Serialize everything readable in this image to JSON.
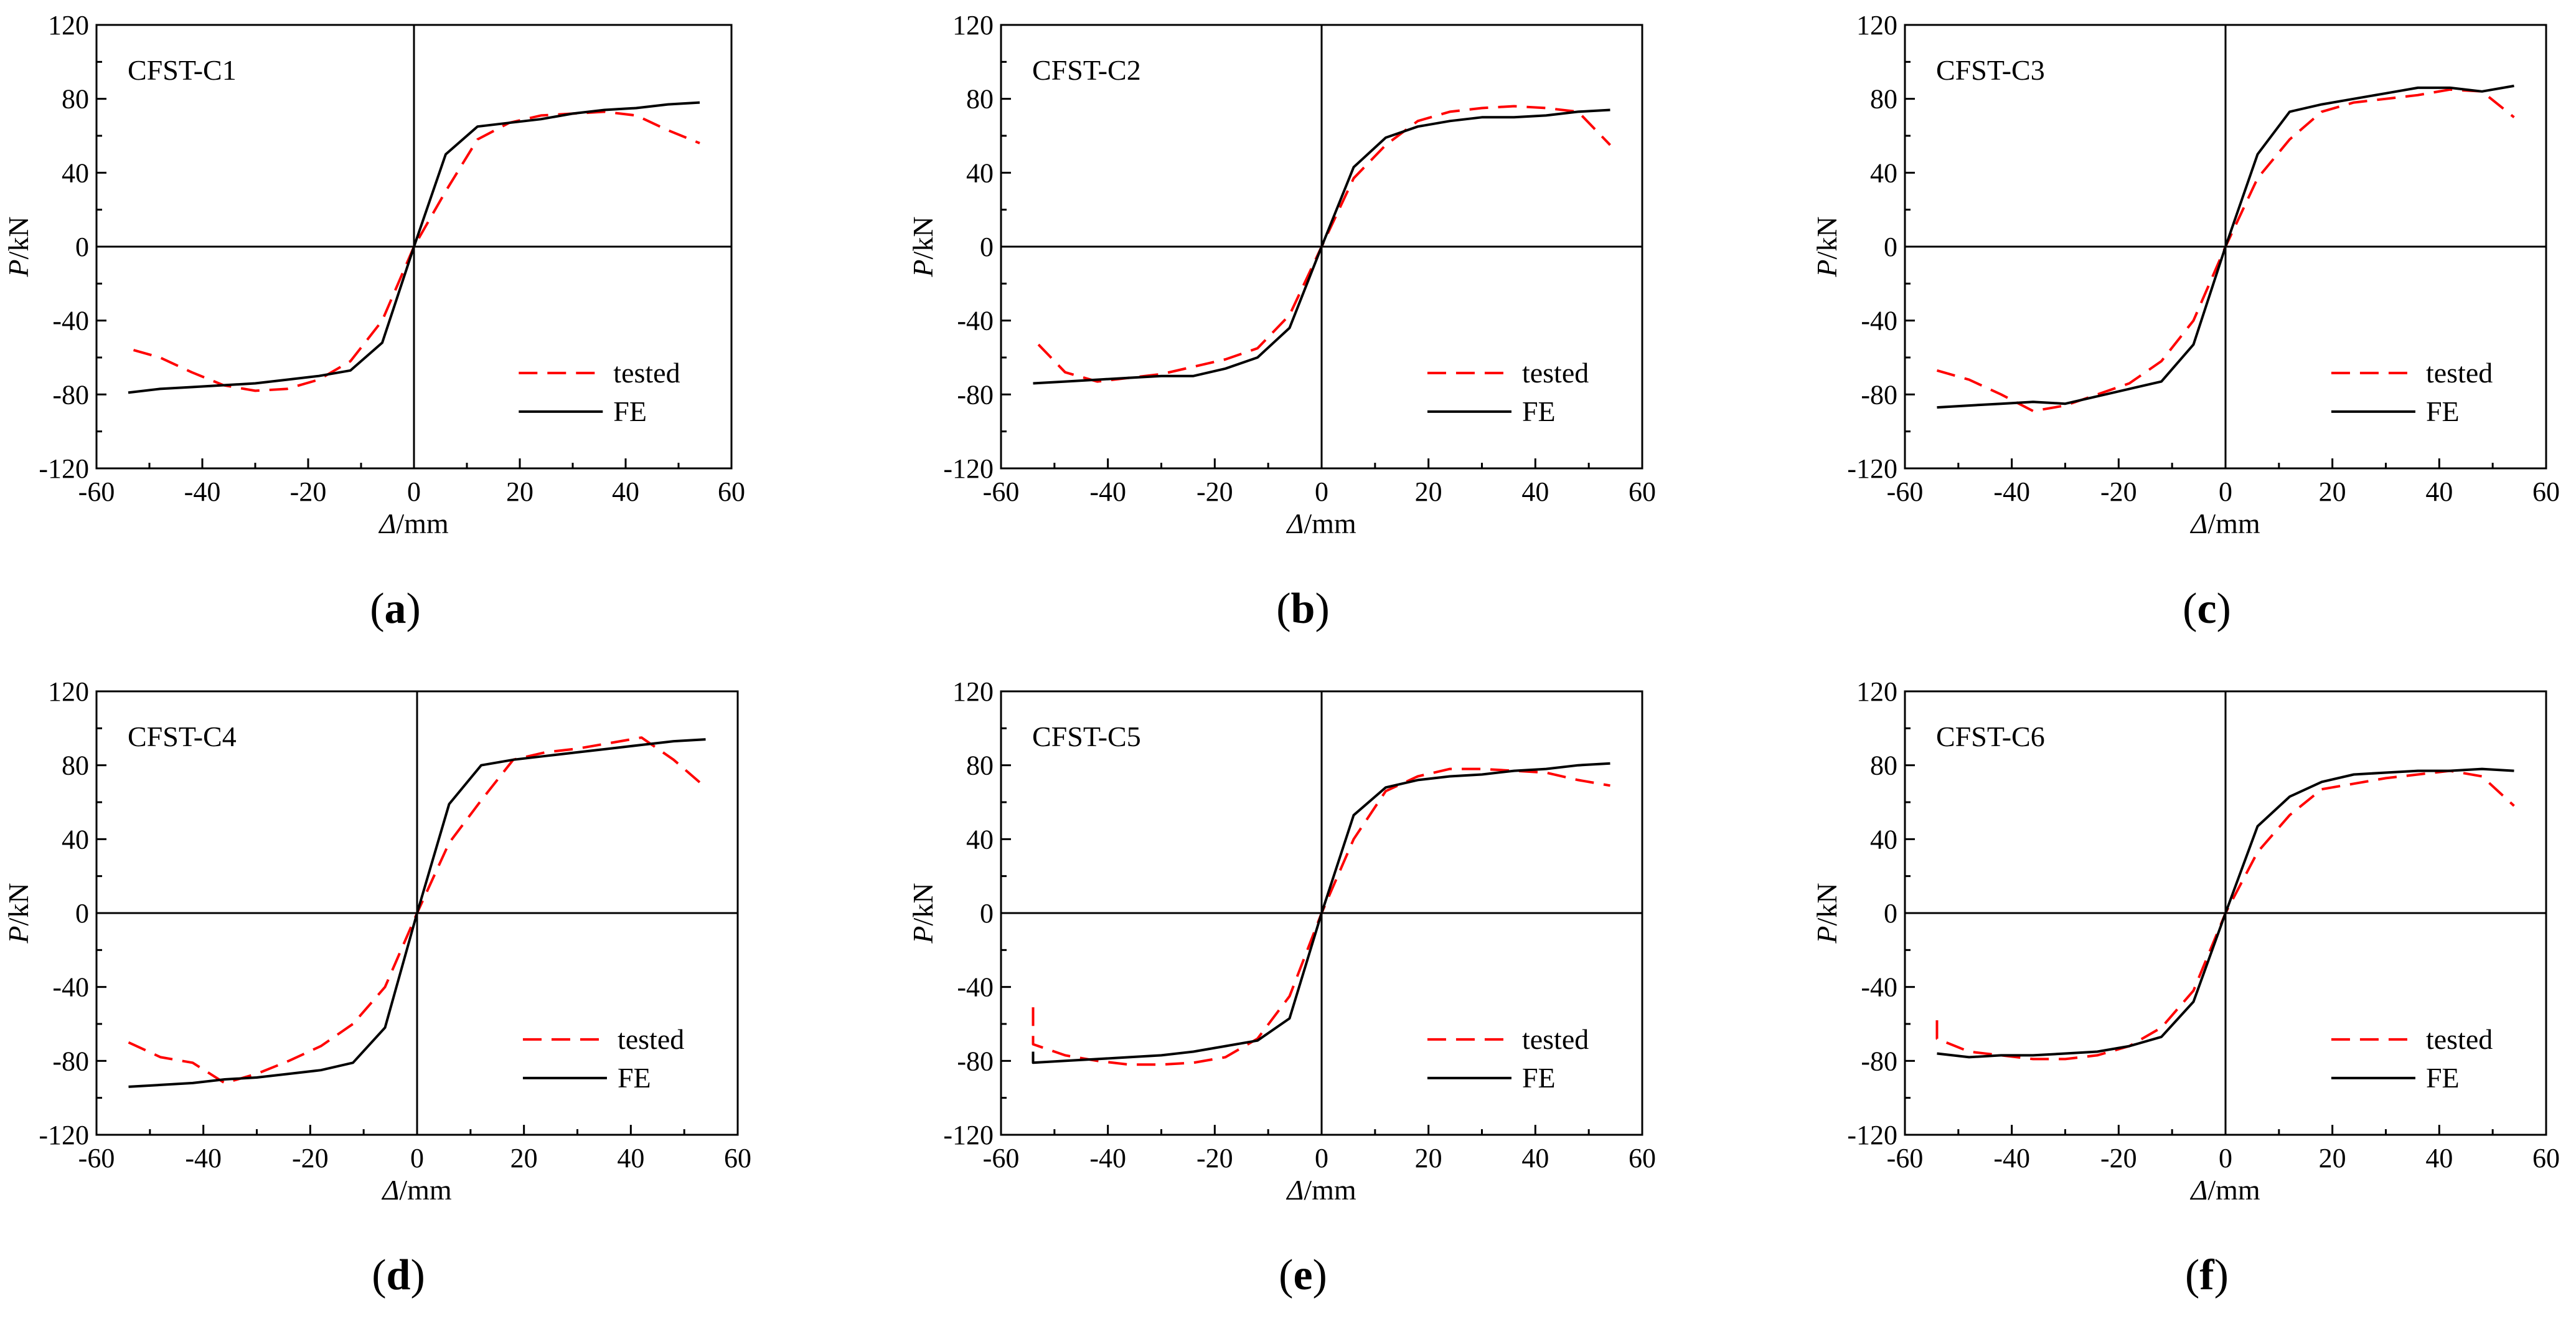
{
  "figure": {
    "background": "#ffffff",
    "tested_color": "#ff0000",
    "fe_color": "#000000"
  },
  "chart_data": [
    {
      "type": "line",
      "title": "CFST-C1",
      "caption_letter": "a",
      "caption_open": "(",
      "caption_close": ")",
      "xlabel_sym": "Δ",
      "xlabel_unit": "/mm",
      "ylabel_sym": "P",
      "ylabel_unit": "/kN",
      "xlim": [
        -60,
        60
      ],
      "ylim": [
        -120,
        120
      ],
      "xticks": [
        -60,
        -40,
        -20,
        0,
        20,
        40,
        60
      ],
      "yticks": [
        -120,
        -80,
        -40,
        0,
        40,
        80,
        120
      ],
      "legend": {
        "position": "lower-right",
        "entries": [
          "tested",
          "FE"
        ]
      },
      "series": [
        {
          "name": "tested",
          "style": "dashed",
          "color": "#ff0000",
          "x": [
            -53,
            -48,
            -42,
            -36,
            -30,
            -24,
            -18,
            -12,
            -6,
            0,
            6,
            12,
            18,
            24,
            30,
            36,
            42,
            48,
            54
          ],
          "y": [
            -56,
            -60,
            -68,
            -75,
            -78,
            -77,
            -72,
            -62,
            -40,
            0,
            30,
            58,
            67,
            71,
            72,
            73,
            71,
            63,
            56
          ]
        },
        {
          "name": "FE",
          "style": "solid",
          "color": "#000000",
          "x": [
            -54,
            -48,
            -42,
            -36,
            -30,
            -24,
            -18,
            -12,
            -6,
            0,
            6,
            12,
            18,
            24,
            30,
            36,
            42,
            48,
            54
          ],
          "y": [
            -79,
            -77,
            -76,
            -75,
            -74,
            -72,
            -70,
            -67,
            -52,
            0,
            50,
            65,
            67,
            69,
            72,
            74,
            75,
            77,
            78
          ]
        }
      ]
    },
    {
      "type": "line",
      "title": "CFST-C2",
      "caption_letter": "b",
      "caption_open": "(",
      "caption_close": ")",
      "xlabel_sym": "Δ",
      "xlabel_unit": "/mm",
      "ylabel_sym": "P",
      "ylabel_unit": "/kN",
      "xlim": [
        -60,
        60
      ],
      "ylim": [
        -120,
        120
      ],
      "xticks": [
        -60,
        -40,
        -20,
        0,
        20,
        40,
        60
      ],
      "yticks": [
        -120,
        -80,
        -40,
        0,
        40,
        80,
        120
      ],
      "legend": {
        "position": "lower-right",
        "entries": [
          "tested",
          "FE"
        ]
      },
      "series": [
        {
          "name": "tested",
          "style": "dashed",
          "color": "#ff0000",
          "x": [
            -53,
            -48,
            -42,
            -36,
            -30,
            -24,
            -18,
            -12,
            -6,
            0,
            6,
            12,
            18,
            24,
            30,
            36,
            42,
            48,
            54
          ],
          "y": [
            -53,
            -68,
            -73,
            -71,
            -69,
            -65,
            -61,
            -55,
            -37,
            0,
            37,
            55,
            68,
            73,
            75,
            76,
            75,
            73,
            55
          ]
        },
        {
          "name": "FE",
          "style": "solid",
          "color": "#000000",
          "x": [
            -54,
            -48,
            -42,
            -36,
            -30,
            -24,
            -18,
            -12,
            -6,
            0,
            6,
            12,
            18,
            24,
            30,
            36,
            42,
            48,
            54
          ],
          "y": [
            -74,
            -73,
            -72,
            -71,
            -70,
            -70,
            -66,
            -60,
            -44,
            0,
            43,
            59,
            65,
            68,
            70,
            70,
            71,
            73,
            74
          ]
        }
      ]
    },
    {
      "type": "line",
      "title": "CFST-C3",
      "caption_letter": "c",
      "caption_open": "(",
      "caption_close": ")",
      "xlabel_sym": "Δ",
      "xlabel_unit": "/mm",
      "ylabel_sym": "P",
      "ylabel_unit": "/kN",
      "xlim": [
        -60,
        60
      ],
      "ylim": [
        -120,
        120
      ],
      "xticks": [
        -60,
        -40,
        -20,
        0,
        20,
        40,
        60
      ],
      "yticks": [
        -120,
        -80,
        -40,
        0,
        40,
        80,
        120
      ],
      "legend": {
        "position": "lower-right",
        "entries": [
          "tested",
          "FE"
        ]
      },
      "series": [
        {
          "name": "tested",
          "style": "dashed",
          "color": "#ff0000",
          "x": [
            -54,
            -48,
            -42,
            -36,
            -30,
            -24,
            -18,
            -12,
            -6,
            0,
            6,
            12,
            18,
            24,
            30,
            36,
            42,
            48,
            54
          ],
          "y": [
            -67,
            -72,
            -80,
            -89,
            -86,
            -80,
            -74,
            -62,
            -40,
            0,
            37,
            58,
            73,
            78,
            80,
            82,
            85,
            84,
            70
          ]
        },
        {
          "name": "FE",
          "style": "solid",
          "color": "#000000",
          "x": [
            -54,
            -48,
            -42,
            -36,
            -30,
            -24,
            -18,
            -12,
            -6,
            0,
            6,
            12,
            18,
            24,
            30,
            36,
            42,
            48,
            54
          ],
          "y": [
            -87,
            -86,
            -85,
            -84,
            -85,
            -81,
            -77,
            -73,
            -53,
            0,
            50,
            73,
            77,
            80,
            83,
            86,
            86,
            84,
            87
          ]
        }
      ]
    },
    {
      "type": "line",
      "title": "CFST-C4",
      "caption_letter": "d",
      "caption_open": "(",
      "caption_close": ")",
      "xlabel_sym": "Δ",
      "xlabel_unit": "/mm",
      "ylabel_sym": "P",
      "ylabel_unit": "/kN",
      "xlim": [
        -60,
        60
      ],
      "ylim": [
        -120,
        120
      ],
      "xticks": [
        -60,
        -40,
        -20,
        0,
        20,
        40,
        60
      ],
      "yticks": [
        -120,
        -80,
        -40,
        0,
        40,
        80,
        120
      ],
      "legend": {
        "position": "lower-right",
        "entries": [
          "tested",
          "FE"
        ]
      },
      "series": [
        {
          "name": "tested",
          "style": "dashed",
          "color": "#ff0000",
          "x": [
            -54,
            -48,
            -42,
            -36,
            -30,
            -24,
            -18,
            -12,
            -6,
            0,
            6,
            12,
            18,
            24,
            30,
            36,
            42,
            48,
            54
          ],
          "y": [
            -70,
            -78,
            -81,
            -92,
            -87,
            -80,
            -72,
            -60,
            -40,
            0,
            38,
            61,
            83,
            87,
            89,
            92,
            95,
            83,
            68
          ]
        },
        {
          "name": "FE",
          "style": "solid",
          "color": "#000000",
          "x": [
            -54,
            -48,
            -42,
            -36,
            -30,
            -24,
            -18,
            -12,
            -6,
            0,
            6,
            12,
            18,
            24,
            30,
            36,
            42,
            48,
            54
          ],
          "y": [
            -94,
            -93,
            -92,
            -90,
            -89,
            -87,
            -85,
            -81,
            -62,
            0,
            59,
            80,
            83,
            85,
            87,
            89,
            91,
            93,
            94
          ]
        }
      ]
    },
    {
      "type": "line",
      "title": "CFST-C5",
      "caption_letter": "e",
      "caption_open": "(",
      "caption_close": ")",
      "xlabel_sym": "Δ",
      "xlabel_unit": "/mm",
      "ylabel_sym": "P",
      "ylabel_unit": "/kN",
      "xlim": [
        -60,
        60
      ],
      "ylim": [
        -120,
        120
      ],
      "xticks": [
        -60,
        -40,
        -20,
        0,
        20,
        40,
        60
      ],
      "yticks": [
        -120,
        -80,
        -40,
        0,
        40,
        80,
        120
      ],
      "legend": {
        "position": "lower-right",
        "entries": [
          "tested",
          "FE"
        ]
      },
      "series": [
        {
          "name": "tested",
          "style": "dashed",
          "color": "#ff0000",
          "x": [
            -54,
            -54,
            -48,
            -42,
            -36,
            -30,
            -24,
            -18,
            -12,
            -6,
            0,
            6,
            12,
            18,
            24,
            30,
            36,
            42,
            48,
            54
          ],
          "y": [
            -51,
            -71,
            -77,
            -80,
            -82,
            -82,
            -81,
            -78,
            -68,
            -45,
            0,
            40,
            66,
            74,
            78,
            78,
            77,
            76,
            72,
            69
          ]
        },
        {
          "name": "FE",
          "style": "solid",
          "color": "#000000",
          "x": [
            -54,
            -54,
            -48,
            -42,
            -36,
            -30,
            -24,
            -18,
            -12,
            -6,
            0,
            6,
            12,
            18,
            24,
            30,
            36,
            42,
            48,
            54
          ],
          "y": [
            -75,
            -81,
            -80,
            -79,
            -78,
            -77,
            -75,
            -72,
            -69,
            -57,
            0,
            53,
            68,
            72,
            74,
            75,
            77,
            78,
            80,
            81
          ]
        }
      ]
    },
    {
      "type": "line",
      "title": "CFST-C6",
      "caption_letter": "f",
      "caption_open": "(",
      "caption_close": ")",
      "xlabel_sym": "Δ",
      "xlabel_unit": "/mm",
      "ylabel_sym": "P",
      "ylabel_unit": "/kN",
      "xlim": [
        -60,
        60
      ],
      "ylim": [
        -120,
        120
      ],
      "xticks": [
        -60,
        -40,
        -20,
        0,
        20,
        40,
        60
      ],
      "yticks": [
        -120,
        -80,
        -40,
        0,
        40,
        80,
        120
      ],
      "legend": {
        "position": "lower-right",
        "entries": [
          "tested",
          "FE"
        ]
      },
      "series": [
        {
          "name": "tested",
          "style": "dashed",
          "color": "#ff0000",
          "x": [
            -54,
            -54,
            -48,
            -42,
            -36,
            -30,
            -24,
            -18,
            -12,
            -6,
            0,
            6,
            12,
            18,
            24,
            30,
            36,
            42,
            48,
            54
          ],
          "y": [
            -58,
            -68,
            -75,
            -77,
            -79,
            -79,
            -77,
            -72,
            -62,
            -42,
            0,
            33,
            53,
            67,
            70,
            73,
            75,
            77,
            74,
            58
          ]
        },
        {
          "name": "FE",
          "style": "solid",
          "color": "#000000",
          "x": [
            -54,
            -48,
            -42,
            -36,
            -30,
            -24,
            -18,
            -12,
            -6,
            0,
            6,
            12,
            18,
            24,
            30,
            36,
            42,
            48,
            54
          ],
          "y": [
            -76,
            -78,
            -77,
            -77,
            -76,
            -75,
            -72,
            -67,
            -48,
            0,
            47,
            63,
            71,
            75,
            76,
            77,
            77,
            78,
            77
          ]
        }
      ]
    }
  ]
}
